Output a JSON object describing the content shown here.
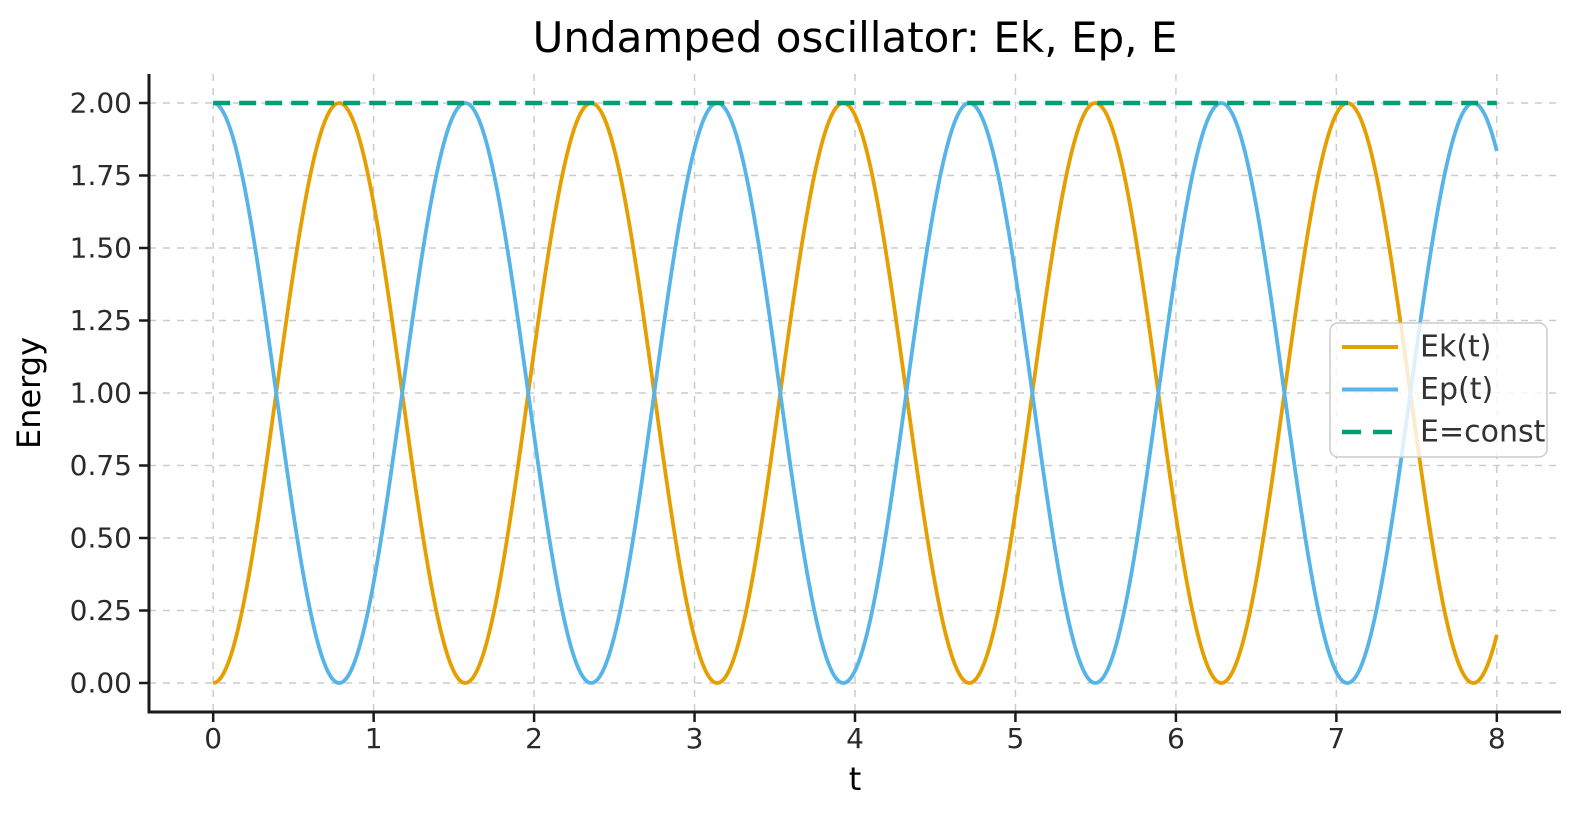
{
  "figure": {
    "background": "#ffffff"
  },
  "chart_data": {
    "type": "line",
    "title": "Undamped oscillator: Ek, Ep, E",
    "xlabel": "t",
    "ylabel": "Energy",
    "xlim": [
      -0.4,
      8.4
    ],
    "ylim": [
      -0.1,
      2.1
    ],
    "t_range": [
      0,
      8
    ],
    "sample_step": 0.01,
    "xticks": [
      0,
      1,
      2,
      3,
      4,
      5,
      6,
      7,
      8
    ],
    "xtick_labels": [
      "0",
      "1",
      "2",
      "3",
      "4",
      "5",
      "6",
      "7",
      "8"
    ],
    "yticks": [
      0,
      0.25,
      0.5,
      0.75,
      1.0,
      1.25,
      1.5,
      1.75,
      2.0
    ],
    "ytick_labels": [
      "0.00",
      "0.25",
      "0.50",
      "0.75",
      "1.00",
      "1.25",
      "1.50",
      "1.75",
      "2.00"
    ],
    "grid": true,
    "grid_color": "#cccccc",
    "axis_color": "#1a1a1a",
    "text_color": "#2b2b2b",
    "series": [
      {
        "name": "Ek(t)",
        "type": "function",
        "formula": "Ek(t) = 2*sin^2(2t)",
        "amplitude": 2,
        "omega": 2,
        "trig": "sin",
        "color": "#E69F00",
        "style": "solid",
        "linewidth": 3.8,
        "value_at_t0": 0,
        "value_at_t8": 0.17,
        "peak_value": 2,
        "peak_t_values": [
          0.785,
          2.356,
          3.927,
          5.498,
          7.069
        ],
        "zero_t_values": [
          0,
          1.571,
          3.142,
          4.712,
          6.283,
          7.854
        ]
      },
      {
        "name": "Ep(t)",
        "type": "function",
        "formula": "Ep(t) = 2*cos^2(2t)",
        "amplitude": 2,
        "omega": 2,
        "trig": "cos",
        "color": "#56B4E9",
        "style": "solid",
        "linewidth": 3.8,
        "value_at_t0": 2,
        "value_at_t8": 1.83,
        "peak_value": 2,
        "peak_t_values": [
          0,
          1.571,
          3.142,
          4.712,
          6.283,
          7.854
        ],
        "zero_t_values": [
          0.785,
          2.356,
          3.927,
          5.498,
          7.069
        ]
      },
      {
        "name": "E=const",
        "type": "constant",
        "formula": "E = Ek + Ep = 2",
        "value": 2,
        "color": "#009E73",
        "style": "dashed",
        "linewidth": 4.5
      }
    ],
    "legend": {
      "position": "center right",
      "background": "#ffffff",
      "background_opacity": 0.8,
      "border_color": "#cccccc",
      "entries": [
        "Ek(t)",
        "Ep(t)",
        "E=const"
      ]
    }
  }
}
